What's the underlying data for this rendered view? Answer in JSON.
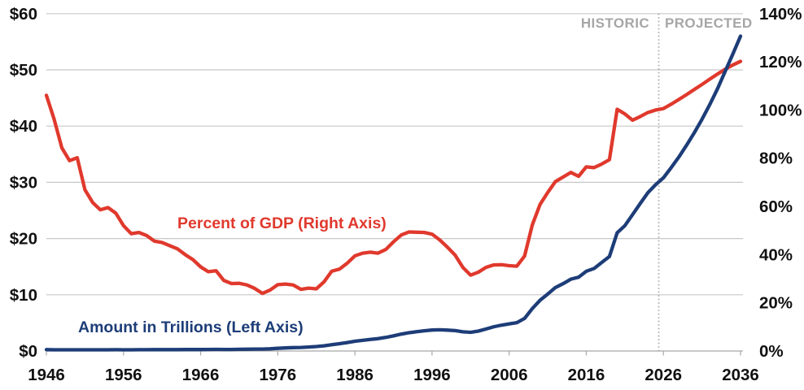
{
  "background_color": "#ffffff",
  "chart_data": {
    "type": "line",
    "title": "",
    "grid": "horizontal",
    "legend": "in-plot text labels",
    "colors": {
      "amount_line": "#1d3d78",
      "percent_line": "#e0392d",
      "gridline": "#c8c8c8",
      "axis": "#a8a8a8",
      "divider": "#9e9e9e",
      "axis_text": "#111111",
      "annotation_text": "#a6a6a6"
    },
    "x": {
      "min": 1946,
      "max": 2036,
      "tick_years": [
        1946,
        1956,
        1966,
        1976,
        1986,
        1996,
        2006,
        2016,
        2026,
        2036
      ]
    },
    "left_axis": {
      "min": 0,
      "max": 60,
      "tick_step": 10,
      "tick_labels": [
        "$0",
        "$10",
        "$20",
        "$30",
        "$40",
        "$50",
        "$60"
      ]
    },
    "right_axis": {
      "min": 0,
      "max": 140,
      "tick_step": 20,
      "tick_labels": [
        "0%",
        "20%",
        "40%",
        "60%",
        "80%",
        "100%",
        "120%",
        "140%"
      ]
    },
    "divider": {
      "year": 2025.4,
      "left_label": "HISTORIC",
      "right_label": "PROJECTED"
    },
    "years": [
      1946,
      1947,
      1948,
      1949,
      1950,
      1951,
      1952,
      1953,
      1954,
      1955,
      1956,
      1957,
      1958,
      1959,
      1960,
      1961,
      1962,
      1963,
      1964,
      1965,
      1966,
      1967,
      1968,
      1969,
      1970,
      1971,
      1972,
      1973,
      1974,
      1975,
      1976,
      1977,
      1978,
      1979,
      1980,
      1981,
      1982,
      1983,
      1984,
      1985,
      1986,
      1987,
      1988,
      1989,
      1990,
      1991,
      1992,
      1993,
      1994,
      1995,
      1996,
      1997,
      1998,
      1999,
      2000,
      2001,
      2002,
      2003,
      2004,
      2005,
      2006,
      2007,
      2008,
      2009,
      2010,
      2011,
      2012,
      2013,
      2014,
      2015,
      2016,
      2017,
      2018,
      2019,
      2020,
      2021,
      2022,
      2023,
      2024,
      2025,
      2026,
      2027,
      2028,
      2029,
      2030,
      2031,
      2032,
      2033,
      2034,
      2035,
      2036
    ],
    "series": [
      {
        "name": "Amount in Trillions (Left Axis)",
        "axis": "left",
        "color": "#1d3d78",
        "values": [
          0.24,
          0.22,
          0.22,
          0.22,
          0.22,
          0.21,
          0.21,
          0.22,
          0.22,
          0.23,
          0.22,
          0.22,
          0.23,
          0.23,
          0.24,
          0.24,
          0.25,
          0.25,
          0.26,
          0.26,
          0.26,
          0.27,
          0.29,
          0.28,
          0.28,
          0.3,
          0.32,
          0.34,
          0.34,
          0.39,
          0.48,
          0.55,
          0.61,
          0.64,
          0.71,
          0.79,
          0.92,
          1.13,
          1.3,
          1.5,
          1.74,
          1.89,
          2.05,
          2.19,
          2.41,
          2.69,
          3.0,
          3.25,
          3.43,
          3.6,
          3.73,
          3.77,
          3.72,
          3.63,
          3.41,
          3.32,
          3.54,
          3.91,
          4.3,
          4.59,
          4.83,
          5.04,
          5.8,
          7.55,
          9.02,
          10.13,
          11.28,
          11.98,
          12.78,
          13.12,
          14.17,
          14.67,
          15.75,
          16.8,
          21.02,
          22.28,
          24.25,
          26.24,
          28.18,
          29.6,
          30.8,
          32.6,
          34.5,
          36.6,
          38.8,
          41.2,
          43.8,
          46.6,
          49.7,
          52.8,
          56.0
        ]
      },
      {
        "name": "Percent of GDP (Right Axis)",
        "axis": "right",
        "color": "#e0392d",
        "values": [
          106.1,
          96.2,
          84.3,
          79.0,
          80.2,
          66.9,
          61.6,
          58.6,
          59.5,
          57.2,
          52.0,
          48.7,
          49.2,
          47.9,
          45.6,
          45.0,
          43.7,
          42.4,
          40.0,
          37.9,
          34.9,
          32.9,
          33.3,
          29.3,
          28.0,
          28.1,
          27.4,
          26.0,
          23.9,
          25.3,
          27.5,
          27.8,
          27.4,
          25.6,
          26.1,
          25.8,
          28.7,
          33.1,
          34.0,
          36.4,
          39.5,
          40.6,
          41.0,
          40.6,
          42.1,
          45.3,
          48.1,
          49.4,
          49.3,
          49.2,
          48.5,
          46.1,
          43.1,
          39.8,
          34.7,
          31.5,
          32.7,
          34.7,
          35.7,
          35.8,
          35.4,
          35.2,
          39.4,
          52.3,
          60.8,
          65.8,
          70.3,
          72.2,
          74.1,
          72.5,
          76.4,
          76.1,
          77.6,
          79.4,
          100.3,
          98.4,
          95.8,
          97.3,
          99.0,
          100.0,
          100.6,
          102.4,
          104.4,
          106.4,
          108.5,
          110.6,
          112.8,
          114.9,
          116.9,
          118.7,
          120.2
        ]
      }
    ]
  }
}
